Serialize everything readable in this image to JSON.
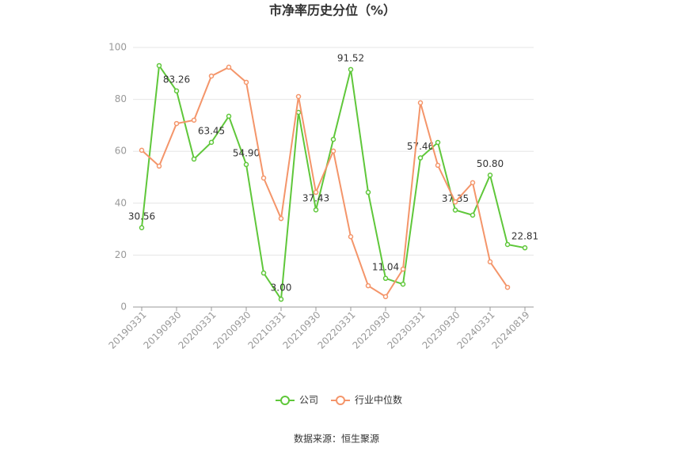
{
  "chart_data": {
    "type": "line",
    "title": "市净率历史分位（%）",
    "categories": [
      "20190331",
      null,
      "20190930",
      null,
      "20200331",
      null,
      "20200930",
      null,
      "20210331",
      null,
      "20210930",
      null,
      "20220331",
      null,
      "20220930",
      null,
      "20230331",
      null,
      "20230930",
      null,
      "20240331",
      null,
      "20240819"
    ],
    "series": [
      {
        "name": "公司",
        "color": "#5fc73a",
        "values": [
          30.56,
          93.0,
          83.26,
          57.0,
          63.45,
          73.5,
          54.9,
          13.1,
          3.0,
          75.0,
          37.43,
          64.6,
          91.52,
          44.2,
          11.04,
          8.8,
          57.46,
          63.4,
          37.35,
          35.4,
          50.8,
          24.1,
          22.81
        ],
        "value_labels": [
          "30.56",
          null,
          "83.26",
          null,
          "63.45",
          null,
          "54.90",
          null,
          "3.00",
          null,
          "37.43",
          null,
          "91.52",
          null,
          "11.04",
          null,
          "57.46",
          null,
          "37.35",
          null,
          "50.80",
          null,
          "22.81"
        ]
      },
      {
        "name": "行业中位数",
        "color": "#f4956a",
        "values": [
          60.4,
          54.3,
          70.7,
          72.0,
          89.0,
          92.4,
          86.6,
          49.7,
          34.1,
          81.1,
          44.2,
          60.1,
          27.1,
          8.2,
          4.0,
          14.6,
          78.7,
          54.6,
          40.5,
          47.9,
          17.4,
          7.6,
          null
        ]
      }
    ],
    "ylim": [
      0,
      100
    ],
    "yticks": [
      0,
      20,
      40,
      60,
      80,
      100
    ],
    "grid": true,
    "source": "数据来源：恒生聚源"
  }
}
